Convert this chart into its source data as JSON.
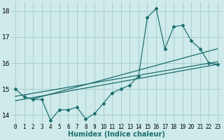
{
  "xlabel": "Humidex (Indice chaleur)",
  "bg_color": "#ceeaea",
  "grid_color": "#aacece",
  "line_color": "#1a6e6e",
  "xlim": [
    -0.5,
    23.5
  ],
  "ylim": [
    13.7,
    18.35
  ],
  "yticks": [
    14,
    15,
    16,
    17,
    18
  ],
  "xticks": [
    0,
    1,
    2,
    3,
    4,
    5,
    6,
    7,
    8,
    9,
    10,
    11,
    12,
    13,
    14,
    15,
    16,
    17,
    18,
    19,
    20,
    21,
    22,
    23
  ],
  "series": [
    [
      0,
      15.0
    ],
    [
      1,
      14.7
    ],
    [
      2,
      14.6
    ],
    [
      3,
      14.6
    ],
    [
      4,
      13.8
    ],
    [
      5,
      14.2
    ],
    [
      6,
      14.2
    ],
    [
      7,
      14.3
    ],
    [
      8,
      13.85
    ],
    [
      9,
      14.05
    ],
    [
      10,
      14.45
    ],
    [
      11,
      14.85
    ],
    [
      12,
      15.0
    ],
    [
      13,
      15.15
    ],
    [
      14,
      15.5
    ],
    [
      15,
      17.75
    ],
    [
      16,
      18.1
    ],
    [
      17,
      16.55
    ],
    [
      18,
      17.4
    ],
    [
      19,
      17.45
    ],
    [
      20,
      16.85
    ],
    [
      21,
      16.55
    ],
    [
      22,
      16.0
    ],
    [
      23,
      15.95
    ]
  ],
  "regression_lines": [
    {
      "x0": 0,
      "y0": 14.72,
      "x1": 23,
      "y1": 16.05
    },
    {
      "x0": 0,
      "y0": 14.55,
      "x1": 23,
      "y1": 15.95
    },
    {
      "x0": 2,
      "y0": 14.62,
      "x1": 23,
      "y1": 16.55
    }
  ]
}
